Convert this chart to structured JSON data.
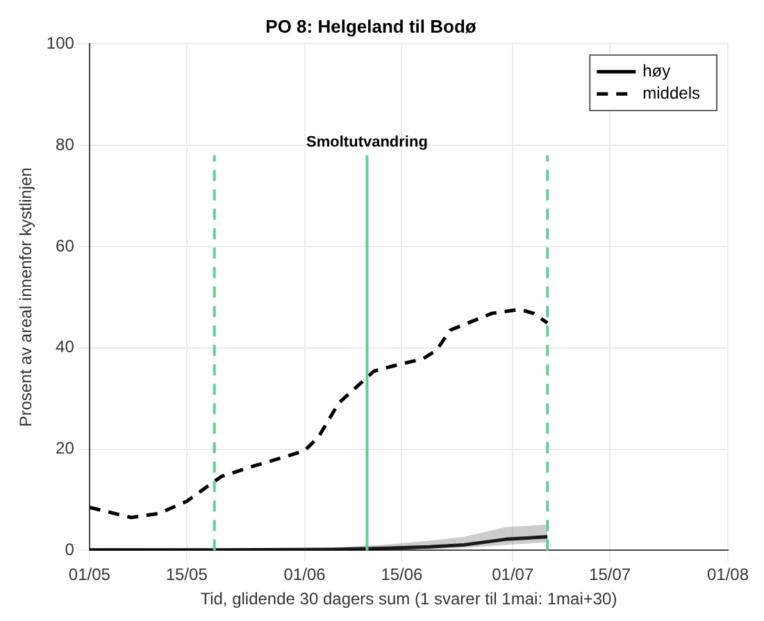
{
  "chart_data": {
    "type": "line",
    "title": "PO 8: Helgeland til Bodø",
    "xlabel": "Tid, glidende 30 dagers sum (1 svarer til 1mai: 1mai+30)",
    "ylabel": "Prosent av areal innenfor kystlinjen",
    "xlim": [
      "--05-01",
      "--08-01"
    ],
    "xticks": [
      {
        "value": "--05-01",
        "label": "01/05"
      },
      {
        "value": "--05-15",
        "label": "15/05"
      },
      {
        "value": "--06-01",
        "label": "01/06"
      },
      {
        "value": "--06-15",
        "label": "15/06"
      },
      {
        "value": "--07-01",
        "label": "01/07"
      },
      {
        "value": "--07-15",
        "label": "15/07"
      },
      {
        "value": "--08-01",
        "label": "01/08"
      }
    ],
    "ylim": [
      0,
      100
    ],
    "yticks": [
      0,
      20,
      40,
      60,
      80,
      100
    ],
    "grid": true,
    "legend": "top right",
    "marker": "none",
    "series": [
      {
        "name": "høy",
        "color": "#000000",
        "line_style": "solid",
        "x": [
          "--05-01",
          "--05-20",
          "--06-05",
          "--06-12",
          "--06-19",
          "--06-24",
          "--06-30",
          "--07-06"
        ],
        "values": [
          0.1,
          0.1,
          0.2,
          0.4,
          0.7,
          1.1,
          2.2,
          2.7
        ],
        "lower": [
          0,
          0,
          0.1,
          0.2,
          0.3,
          0.5,
          1.1,
          1.6
        ],
        "upper": [
          0.1,
          0.2,
          0.5,
          1.1,
          1.9,
          2.7,
          4.6,
          5.1
        ]
      },
      {
        "name": "middels",
        "color": "#000000",
        "line_style": "dashed",
        "x": [
          "--05-01",
          "--05-07",
          "--05-11",
          "--05-15",
          "--05-20",
          "--05-25",
          "--05-29",
          "--06-01",
          "--06-03",
          "--06-05",
          "--06-06",
          "--06-11",
          "--06-14",
          "--06-18",
          "--06-20",
          "--06-22",
          "--06-28",
          "--07-02",
          "--07-04",
          "--07-06"
        ],
        "values": [
          8.5,
          6.5,
          7.3,
          9.7,
          14.6,
          16.8,
          18.4,
          19.7,
          22.4,
          27,
          29.2,
          35.4,
          36.5,
          37.8,
          39.5,
          43.5,
          46.8,
          47.6,
          46.8,
          44.9
        ]
      }
    ],
    "ref_lines": [
      {
        "axis": "x",
        "value": "--05-19",
        "color": "#66cc99",
        "line_style": "dashed"
      },
      {
        "axis": "x",
        "value": "--06-10",
        "label": "Smoltutvandring",
        "color": "#66cc99",
        "line_style": "solid"
      },
      {
        "axis": "x",
        "value": "--07-06",
        "color": "#66cc99",
        "line_style": "dashed"
      }
    ]
  }
}
